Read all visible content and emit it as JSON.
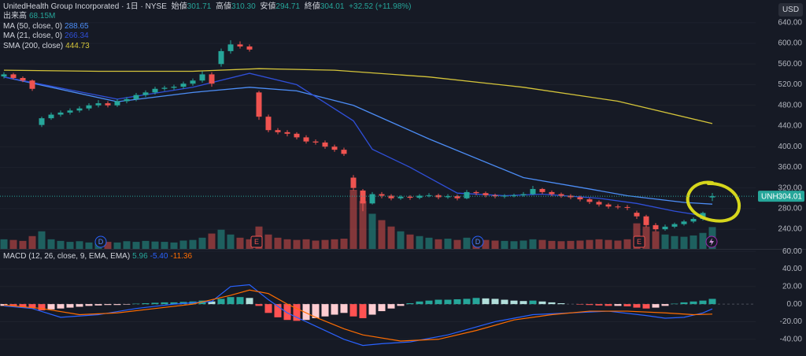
{
  "header": {
    "title": "UnitedHealth Group Incorporated · 1日 · NYSE",
    "open_label": "始値",
    "open": "301.71",
    "high_label": "高値",
    "high": "310.30",
    "low_label": "安値",
    "low": "294.71",
    "close_label": "終値",
    "close": "304.01",
    "change": "+32.52 (+11.98%)"
  },
  "chart_data": [
    {
      "type": "candlestick",
      "currency": "USD",
      "symbol": "UNH",
      "ylim": [
        202,
        684
      ],
      "yticks": [
        {
          "value": 240,
          "label": "240.00"
        },
        {
          "value": 280,
          "label": "280.00"
        },
        {
          "value": 320,
          "label": "320.00"
        },
        {
          "value": 360,
          "label": "360.00"
        },
        {
          "value": 400,
          "label": "400.00"
        },
        {
          "value": 440,
          "label": "440.00"
        },
        {
          "value": 480,
          "label": "480.00"
        },
        {
          "value": 520,
          "label": "520.00"
        },
        {
          "value": 560,
          "label": "560.00"
        },
        {
          "value": 600,
          "label": "600.00"
        },
        {
          "value": 640,
          "label": "640.00"
        }
      ],
      "series": [
        {
          "name": "UNH",
          "up_color": "#26a69a",
          "down_color": "#ef5350",
          "open": [
            536,
            540,
            533,
            528,
            442,
            455,
            462,
            466,
            470,
            474,
            480,
            484,
            480,
            488,
            492,
            500,
            505,
            512,
            514,
            516,
            522,
            528,
            540,
            560,
            585,
            598,
            594,
            505,
            458,
            432,
            428,
            425,
            418,
            410,
            408,
            400,
            394,
            340,
            315,
            290,
            308,
            305,
            300,
            303,
            301,
            305,
            306,
            302,
            304,
            300,
            312,
            310,
            306,
            304,
            305,
            306,
            308,
            318,
            312,
            308,
            305,
            302,
            298,
            293,
            288,
            284,
            283,
            272,
            265,
            248,
            240,
            245,
            250,
            255,
            260,
            301.71
          ],
          "high": [
            544,
            543,
            536,
            530,
            458,
            466,
            470,
            474,
            478,
            484,
            490,
            488,
            492,
            496,
            504,
            509,
            516,
            518,
            520,
            526,
            532,
            546,
            544,
            590,
            606,
            604,
            598,
            508,
            462,
            436,
            432,
            428,
            422,
            414,
            412,
            404,
            398,
            345,
            318,
            312,
            312,
            308,
            306,
            306,
            308,
            310,
            309,
            308,
            307,
            316,
            315,
            313,
            309,
            308,
            309,
            312,
            324,
            320,
            315,
            311,
            308,
            305,
            301,
            296,
            291,
            288,
            287,
            276,
            268,
            252,
            249,
            253,
            258,
            263,
            274,
            310.3
          ],
          "low": [
            532,
            530,
            525,
            508,
            438,
            452,
            458,
            462,
            466,
            470,
            476,
            476,
            477,
            484,
            488,
            496,
            501,
            508,
            510,
            512,
            518,
            524,
            516,
            555,
            580,
            590,
            584,
            452,
            428,
            424,
            420,
            414,
            406,
            404,
            396,
            390,
            382,
            315,
            275,
            288,
            300,
            296,
            297,
            297,
            298,
            302,
            298,
            299,
            296,
            298,
            306,
            302,
            300,
            300,
            302,
            303,
            306,
            308,
            304,
            301,
            298,
            294,
            289,
            284,
            280,
            279,
            277,
            260,
            244,
            236,
            237,
            242,
            247,
            252,
            257,
            294.71
          ],
          "close": [
            540,
            533,
            528,
            512,
            455,
            462,
            466,
            470,
            474,
            480,
            484,
            480,
            488,
            492,
            500,
            505,
            512,
            514,
            516,
            522,
            528,
            540,
            522,
            585,
            598,
            594,
            588,
            458,
            432,
            428,
            425,
            418,
            410,
            408,
            400,
            394,
            386,
            320,
            290,
            308,
            305,
            300,
            303,
            301,
            305,
            306,
            302,
            304,
            300,
            312,
            310,
            306,
            304,
            305,
            306,
            308,
            318,
            312,
            308,
            305,
            302,
            298,
            293,
            288,
            284,
            283,
            282,
            265,
            248,
            240,
            245,
            250,
            255,
            260,
            271.49,
            304.01
          ]
        }
      ],
      "volume": {
        "name": "出来高",
        "value_label": "68.15M",
        "values": [
          30,
          28,
          25,
          40,
          55,
          30,
          25,
          22,
          24,
          20,
          26,
          22,
          20,
          24,
          22,
          25,
          23,
          22,
          20,
          26,
          28,
          35,
          48,
          60,
          45,
          35,
          30,
          70,
          45,
          35,
          30,
          28,
          30,
          26,
          28,
          30,
          32,
          185,
          150,
          110,
          90,
          70,
          55,
          45,
          40,
          35,
          30,
          32,
          28,
          35,
          30,
          28,
          26,
          25,
          24,
          26,
          30,
          28,
          25,
          24,
          25,
          26,
          28,
          30,
          28,
          26,
          30,
          80,
          70,
          55,
          45,
          40,
          38,
          42,
          50,
          68.15
        ]
      },
      "lines": [
        {
          "name": "MA (50, close, 0)",
          "value_label": "288.65",
          "color": "#4c8df6",
          "x": [
            0,
            12,
            20,
            26,
            31,
            37,
            45,
            55,
            62,
            66,
            72,
            75
          ],
          "values": [
            535,
            487,
            505,
            515,
            508,
            480,
            415,
            340,
            318,
            305,
            292,
            288.65
          ]
        },
        {
          "name": "MA (21, close, 0)",
          "value_label": "266.34",
          "color": "#2f4fd8",
          "x": [
            0,
            12,
            20,
            26,
            31,
            37,
            39,
            43,
            48,
            53,
            57,
            63,
            67,
            71,
            74
          ],
          "values": [
            535,
            492,
            515,
            542,
            520,
            450,
            395,
            360,
            310,
            305,
            308,
            300,
            290,
            275,
            266.34
          ]
        },
        {
          "name": "SMA (200, close)",
          "value_label": "444.73",
          "color": "#d4c43a",
          "x": [
            0,
            10,
            20,
            27,
            35,
            45,
            55,
            65,
            75
          ],
          "values": [
            548,
            546,
            546,
            551,
            548,
            535,
            515,
            488,
            444.73
          ]
        }
      ],
      "markers": [
        "D",
        "E",
        "D",
        "E"
      ]
    },
    {
      "type": "macd",
      "name": "MACD (12, 26, close, 9, EMA, EMA)",
      "ylim": [
        -59,
        61
      ],
      "yticks": [
        {
          "value": -40,
          "label": "-40.00"
        },
        {
          "value": -20,
          "label": "-20.00"
        },
        {
          "value": 0,
          "label": "0.00"
        },
        {
          "value": 20,
          "label": "20.00"
        },
        {
          "value": 40,
          "label": "40.00"
        },
        {
          "value": 60,
          "label": "60.00"
        }
      ],
      "histogram": {
        "value_label": "5.96",
        "colors": [
          "#26a69a",
          "#b2dfdb",
          "#ff5252",
          "#ffcdd2"
        ],
        "values": [
          -2,
          -3,
          -4,
          -5,
          -7,
          -6,
          -5,
          -4,
          -3,
          -2,
          -1.5,
          -1,
          -1,
          -0.5,
          0.5,
          1,
          1.5,
          2,
          2,
          2.5,
          3,
          4,
          3,
          6,
          8,
          8,
          7,
          -2,
          -10,
          -15,
          -18,
          -19,
          -18,
          -16,
          -14,
          -12,
          -10,
          -14,
          -16,
          -12,
          -8,
          -5,
          -2,
          1,
          3,
          4,
          5,
          5,
          5.5,
          6,
          7,
          6.5,
          6,
          5,
          4,
          3.5,
          4,
          3,
          2,
          1,
          0,
          -0.5,
          -1,
          -1.5,
          -2,
          -2,
          -2.5,
          -4,
          -5,
          -4,
          -2,
          0.5,
          2,
          3,
          4,
          5.96
        ]
      },
      "series": [
        {
          "color": "#2962ff",
          "value_label": "-5.40",
          "x": [
            0,
            3,
            6,
            10,
            14,
            18,
            22,
            24,
            26,
            28,
            30,
            33,
            36,
            38,
            40,
            43,
            47,
            52,
            56,
            60,
            64,
            68,
            70,
            72,
            74,
            75
          ],
          "values": [
            -2,
            -5,
            -15,
            -12,
            -5,
            0,
            3,
            20,
            22,
            5,
            -10,
            -25,
            -40,
            -47,
            -45,
            -43,
            -35,
            -20,
            -12,
            -10,
            -8,
            -13,
            -16,
            -15,
            -10,
            -5.4
          ]
        },
        {
          "color": "#ff6d00",
          "value_label": "-11.36",
          "x": [
            0,
            4,
            8,
            12,
            16,
            20,
            24,
            26,
            28,
            30,
            33,
            36,
            38,
            42,
            46,
            50,
            54,
            58,
            62,
            66,
            70,
            73,
            75
          ],
          "values": [
            -1,
            -5,
            -12,
            -10,
            -5,
            0,
            10,
            16,
            12,
            0,
            -15,
            -28,
            -35,
            -42,
            -40,
            -30,
            -18,
            -12,
            -8,
            -8,
            -10,
            -12,
            -11.36
          ]
        }
      ]
    }
  ]
}
